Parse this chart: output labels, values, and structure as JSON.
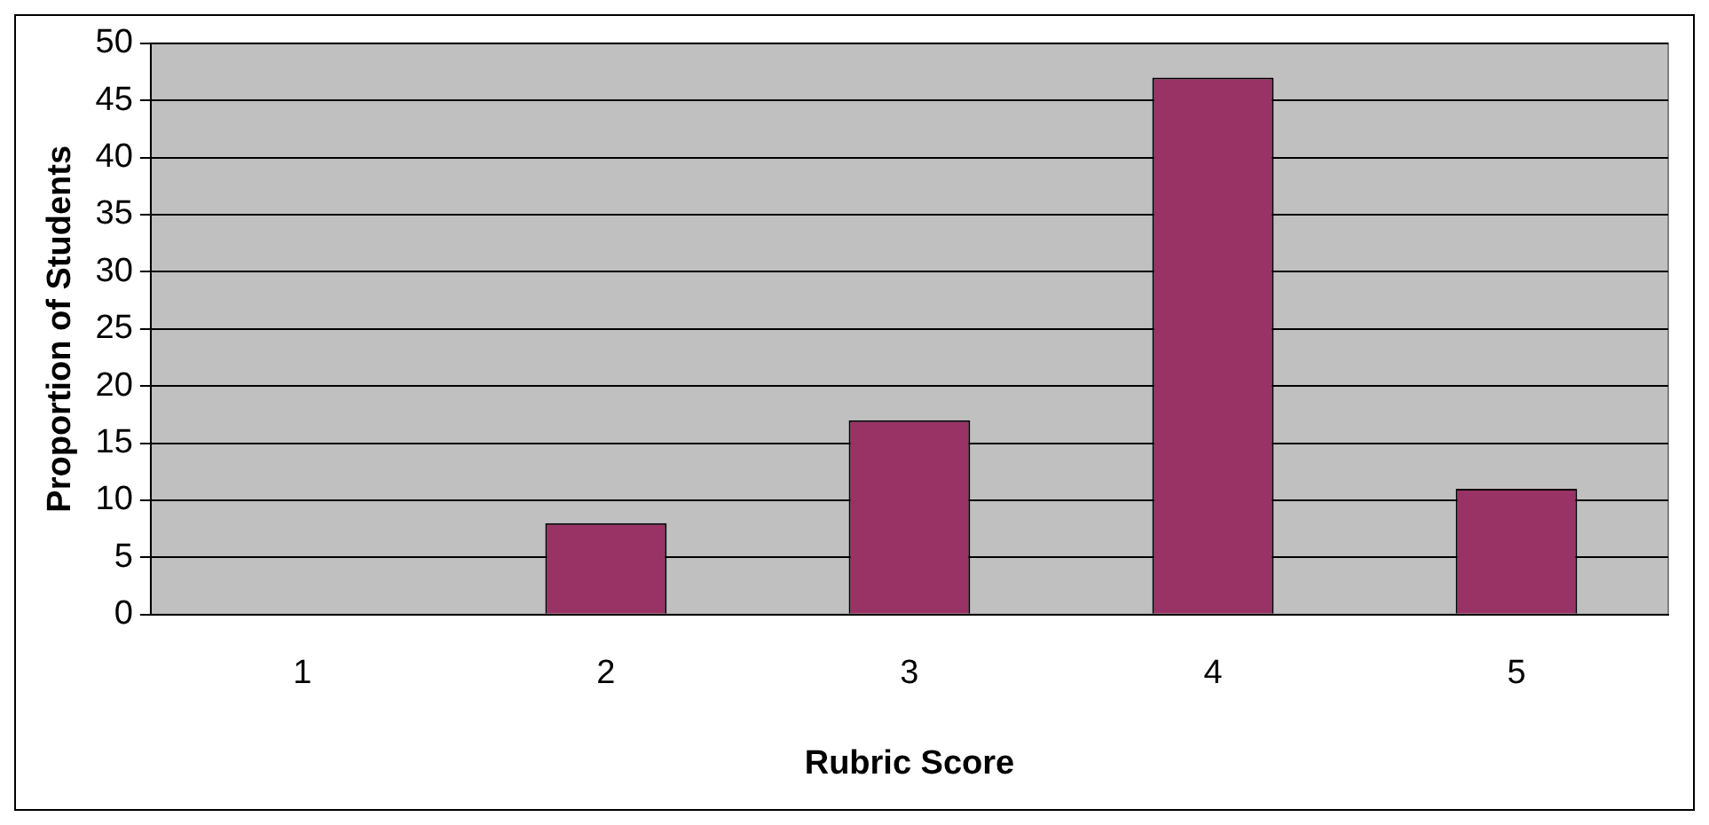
{
  "chart_data": {
    "type": "bar",
    "xlabel": "Rubric Score",
    "ylabel": "Proportion of Students",
    "categories": [
      "1",
      "2",
      "3",
      "4",
      "5"
    ],
    "series": [
      {
        "color": "#993366",
        "values": [
          0,
          8,
          17,
          47,
          11
        ]
      }
    ],
    "ylim": [
      0,
      50
    ],
    "yticks": [
      0,
      5,
      10,
      15,
      20,
      25,
      30,
      35,
      40,
      45,
      50
    ],
    "grid": "y",
    "legend": false
  }
}
